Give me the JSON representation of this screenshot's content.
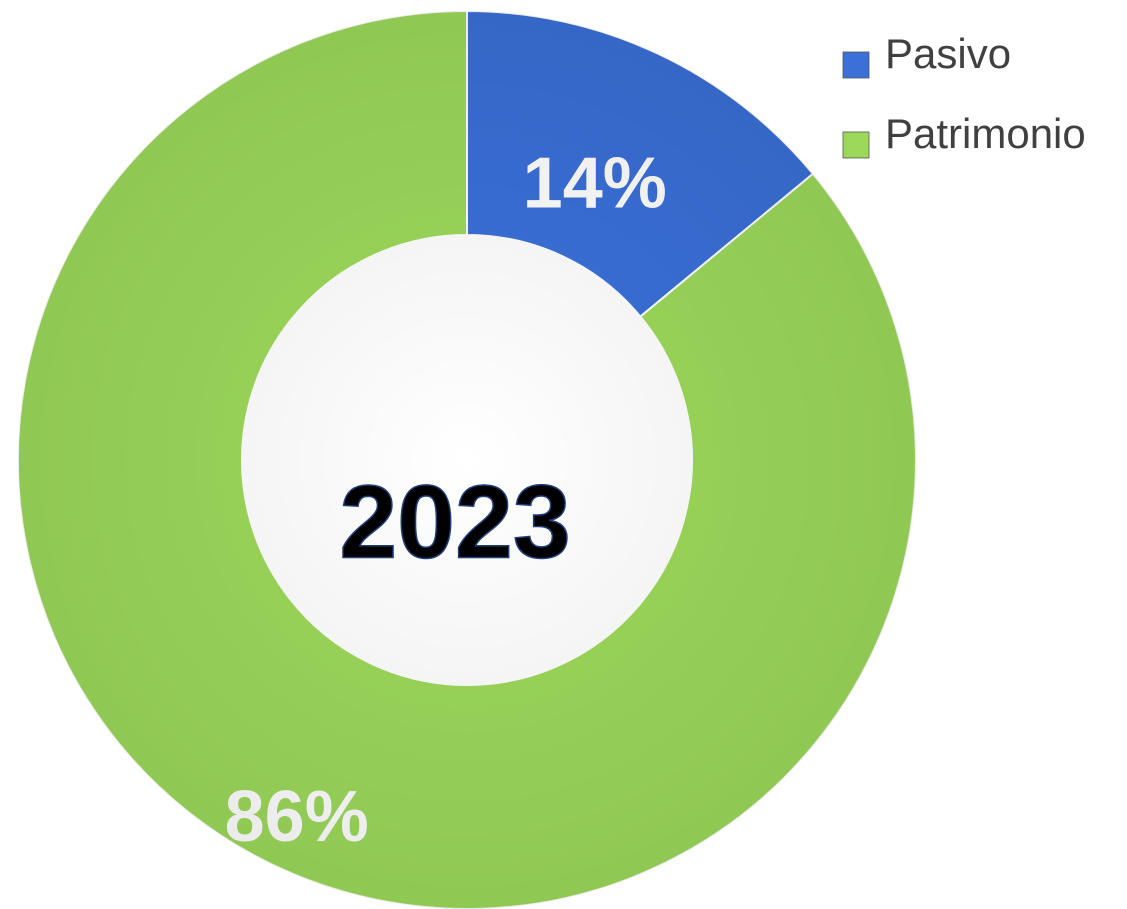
{
  "chart_data": {
    "type": "pie",
    "donut": true,
    "categories": [
      "Pasivo",
      "Patrimonio"
    ],
    "values": [
      14,
      86
    ],
    "value_labels": [
      "14%",
      "86%"
    ],
    "colors": [
      "#3a70d8",
      "#9cd95b"
    ],
    "center_label": "2023",
    "legend": "top-right"
  }
}
